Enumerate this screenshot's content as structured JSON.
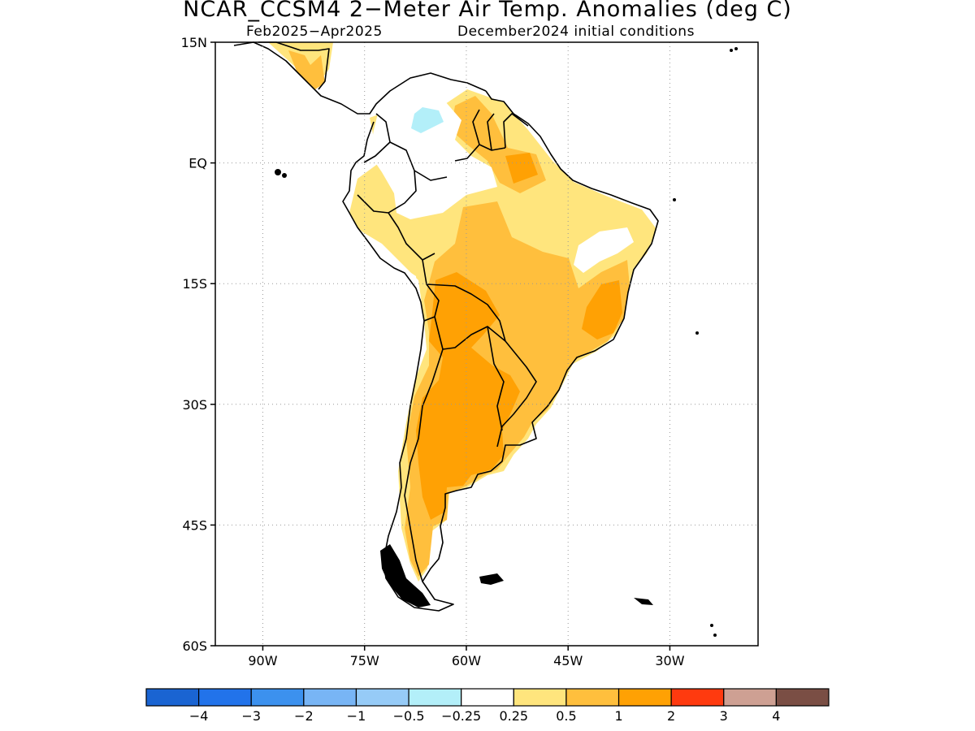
{
  "title": "NCAR_CCSM4 2−Meter Air Temp. Anomalies (deg C)",
  "subtitle_left": "Feb2025−Apr2025",
  "subtitle_right": "December2024 initial conditions",
  "map": {
    "lon_range": [
      -97,
      -17
    ],
    "lat_range": [
      -60,
      15
    ],
    "lat_ticks": [
      {
        "value": 15,
        "label": "15N"
      },
      {
        "value": 0,
        "label": "EQ"
      },
      {
        "value": -15,
        "label": "15S"
      },
      {
        "value": -30,
        "label": "30S"
      },
      {
        "value": -45,
        "label": "45S"
      },
      {
        "value": -60,
        "label": "60S"
      }
    ],
    "lon_ticks": [
      {
        "value": -90,
        "label": "90W"
      },
      {
        "value": -75,
        "label": "75W"
      },
      {
        "value": -60,
        "label": "60W"
      },
      {
        "value": -45,
        "label": "45W"
      },
      {
        "value": -30,
        "label": "30W"
      }
    ],
    "grid": "dotted"
  },
  "colorbar": {
    "colors": [
      "#1a64d2",
      "#2273ea",
      "#3c91ee",
      "#78b5f5",
      "#96cbf7",
      "#b3eff9",
      "#ffffff",
      "#ffe57d",
      "#ffbf3d",
      "#ffa104",
      "#ff3a0f",
      "#cea093",
      "#7a4e44"
    ],
    "labels": [
      "−4",
      "−3",
      "−2",
      "−1",
      "−0.5",
      "−0.25",
      "0.25",
      "0.5",
      "1",
      "2",
      "3",
      "4"
    ]
  }
}
